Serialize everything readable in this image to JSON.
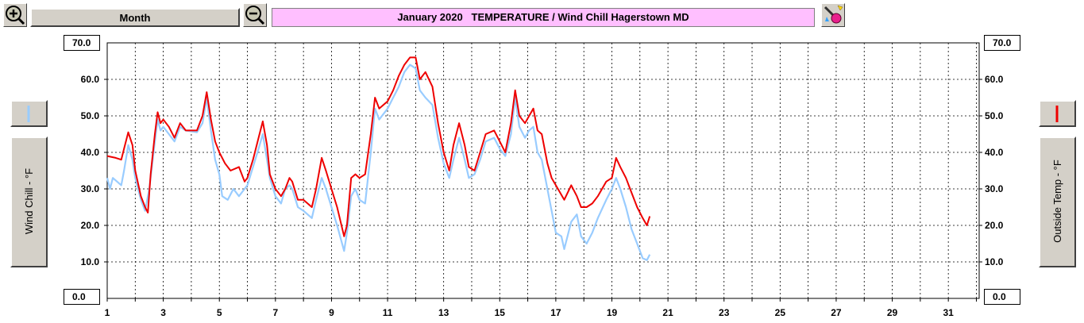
{
  "toolbar": {
    "period_label": "Month",
    "title": "January 2020   TEMPERATURE / Wind Chill Hagerstown MD"
  },
  "icons": {
    "zoom_in": "zoom-in-icon",
    "zoom_out": "zoom-out-icon",
    "tools": "wand-icon",
    "left_legend": "light-blue-line-icon",
    "right_legend": "red-line-icon"
  },
  "colors": {
    "wind_chill": "#99ccff",
    "outside_temp": "#ee0000",
    "title_bg": "#ffbfff"
  },
  "left_axis": {
    "label": "Wind Chill - °F",
    "top_value": "70.0",
    "bottom_value": "0.0"
  },
  "right_axis": {
    "label": "Outside Temp - °F",
    "top_value": "70.0",
    "bottom_value": "0.0"
  },
  "chart_data": {
    "type": "line",
    "xlim": [
      1,
      32.1
    ],
    "ylim": [
      0,
      70
    ],
    "grid": true,
    "x_ticks": [
      "1",
      "3",
      "5",
      "7",
      "9",
      "11",
      "13",
      "15",
      "17",
      "19",
      "21",
      "23",
      "25",
      "27",
      "29",
      "31"
    ],
    "y_ticks": [
      "10.0",
      "20.0",
      "30.0",
      "40.0",
      "50.0",
      "60.0"
    ],
    "series": [
      {
        "key": "temp",
        "color": "#ee0000",
        "points": [
          [
            1.0,
            39
          ],
          [
            1.3,
            38.5
          ],
          [
            1.5,
            38
          ],
          [
            1.6,
            41
          ],
          [
            1.75,
            45.5
          ],
          [
            1.9,
            42
          ],
          [
            2.0,
            35
          ],
          [
            2.2,
            28
          ],
          [
            2.35,
            25
          ],
          [
            2.45,
            23.5
          ],
          [
            2.55,
            34
          ],
          [
            2.7,
            45
          ],
          [
            2.8,
            51
          ],
          [
            2.9,
            48
          ],
          [
            3.0,
            49
          ],
          [
            3.2,
            47
          ],
          [
            3.4,
            44
          ],
          [
            3.6,
            48
          ],
          [
            3.8,
            46
          ],
          [
            4.2,
            46
          ],
          [
            4.4,
            50
          ],
          [
            4.55,
            56.5
          ],
          [
            4.7,
            49
          ],
          [
            4.85,
            43
          ],
          [
            5.0,
            40
          ],
          [
            5.2,
            37
          ],
          [
            5.4,
            35
          ],
          [
            5.7,
            36
          ],
          [
            5.9,
            32
          ],
          [
            6.0,
            33
          ],
          [
            6.2,
            38
          ],
          [
            6.4,
            44
          ],
          [
            6.55,
            48.5
          ],
          [
            6.7,
            42
          ],
          [
            6.8,
            34
          ],
          [
            7.0,
            30
          ],
          [
            7.2,
            28
          ],
          [
            7.35,
            30
          ],
          [
            7.5,
            33
          ],
          [
            7.6,
            32
          ],
          [
            7.8,
            27
          ],
          [
            8.0,
            27
          ],
          [
            8.3,
            25
          ],
          [
            8.45,
            30
          ],
          [
            8.65,
            38.5
          ],
          [
            8.8,
            35
          ],
          [
            9.0,
            30
          ],
          [
            9.2,
            25
          ],
          [
            9.45,
            17
          ],
          [
            9.55,
            20
          ],
          [
            9.7,
            33
          ],
          [
            9.85,
            34
          ],
          [
            10.0,
            33
          ],
          [
            10.2,
            34
          ],
          [
            10.4,
            45
          ],
          [
            10.55,
            55
          ],
          [
            10.7,
            52
          ],
          [
            11.0,
            54
          ],
          [
            11.2,
            57
          ],
          [
            11.4,
            61
          ],
          [
            11.6,
            64
          ],
          [
            11.8,
            66
          ],
          [
            12.0,
            66
          ],
          [
            12.15,
            60
          ],
          [
            12.35,
            62
          ],
          [
            12.6,
            58
          ],
          [
            12.8,
            48
          ],
          [
            13.0,
            40
          ],
          [
            13.2,
            35
          ],
          [
            13.35,
            42
          ],
          [
            13.55,
            48
          ],
          [
            13.75,
            42
          ],
          [
            13.9,
            36
          ],
          [
            14.1,
            35
          ],
          [
            14.3,
            40
          ],
          [
            14.5,
            45
          ],
          [
            14.8,
            46
          ],
          [
            15.0,
            43
          ],
          [
            15.2,
            40
          ],
          [
            15.4,
            48
          ],
          [
            15.55,
            57
          ],
          [
            15.7,
            50
          ],
          [
            15.9,
            48
          ],
          [
            16.05,
            50
          ],
          [
            16.2,
            52
          ],
          [
            16.35,
            46
          ],
          [
            16.5,
            45
          ],
          [
            16.7,
            37
          ],
          [
            16.85,
            33
          ],
          [
            17.0,
            31
          ],
          [
            17.3,
            27
          ],
          [
            17.55,
            31
          ],
          [
            17.75,
            28
          ],
          [
            17.9,
            25
          ],
          [
            18.1,
            25
          ],
          [
            18.3,
            26
          ],
          [
            18.5,
            28
          ],
          [
            18.8,
            32
          ],
          [
            19.0,
            33
          ],
          [
            19.15,
            38.5
          ],
          [
            19.3,
            36
          ],
          [
            19.5,
            33
          ],
          [
            19.7,
            29
          ],
          [
            19.9,
            25
          ],
          [
            20.1,
            22
          ],
          [
            20.25,
            20
          ],
          [
            20.35,
            22.5
          ]
        ]
      },
      {
        "key": "chill",
        "color": "#99ccff",
        "points": [
          [
            1.0,
            33
          ],
          [
            1.1,
            30
          ],
          [
            1.2,
            33
          ],
          [
            1.35,
            32
          ],
          [
            1.5,
            31
          ],
          [
            1.6,
            35
          ],
          [
            1.75,
            42
          ],
          [
            1.9,
            38
          ],
          [
            2.0,
            33
          ],
          [
            2.2,
            27
          ],
          [
            2.35,
            24
          ],
          [
            2.5,
            30
          ],
          [
            2.7,
            43
          ],
          [
            2.8,
            49
          ],
          [
            2.9,
            46
          ],
          [
            3.0,
            47
          ],
          [
            3.2,
            45
          ],
          [
            3.4,
            43
          ],
          [
            3.6,
            47
          ],
          [
            3.8,
            46
          ],
          [
            4.2,
            45.5
          ],
          [
            4.4,
            48
          ],
          [
            4.55,
            55
          ],
          [
            4.7,
            46
          ],
          [
            4.85,
            38
          ],
          [
            5.0,
            34
          ],
          [
            5.1,
            28
          ],
          [
            5.3,
            27
          ],
          [
            5.5,
            30
          ],
          [
            5.7,
            28
          ],
          [
            5.9,
            30
          ],
          [
            6.0,
            31
          ],
          [
            6.2,
            36
          ],
          [
            6.4,
            41
          ],
          [
            6.55,
            45
          ],
          [
            6.7,
            38
          ],
          [
            6.8,
            33
          ],
          [
            7.0,
            28
          ],
          [
            7.2,
            26
          ],
          [
            7.35,
            30
          ],
          [
            7.5,
            31
          ],
          [
            7.6,
            30
          ],
          [
            7.8,
            25
          ],
          [
            8.0,
            24
          ],
          [
            8.3,
            22
          ],
          [
            8.45,
            27
          ],
          [
            8.65,
            33
          ],
          [
            8.8,
            30
          ],
          [
            9.0,
            25
          ],
          [
            9.2,
            20
          ],
          [
            9.45,
            13
          ],
          [
            9.55,
            18
          ],
          [
            9.7,
            28
          ],
          [
            9.85,
            30
          ],
          [
            10.0,
            27
          ],
          [
            10.2,
            26
          ],
          [
            10.4,
            40
          ],
          [
            10.55,
            52
          ],
          [
            10.7,
            49
          ],
          [
            11.0,
            52
          ],
          [
            11.2,
            55
          ],
          [
            11.4,
            58
          ],
          [
            11.6,
            62
          ],
          [
            11.8,
            64
          ],
          [
            12.0,
            63
          ],
          [
            12.15,
            57
          ],
          [
            12.35,
            55
          ],
          [
            12.6,
            53
          ],
          [
            12.8,
            44
          ],
          [
            13.0,
            37
          ],
          [
            13.2,
            33
          ],
          [
            13.35,
            38
          ],
          [
            13.55,
            44
          ],
          [
            13.75,
            38
          ],
          [
            13.9,
            33
          ],
          [
            14.1,
            34
          ],
          [
            14.3,
            38
          ],
          [
            14.5,
            43
          ],
          [
            14.8,
            44
          ],
          [
            15.0,
            41
          ],
          [
            15.2,
            39
          ],
          [
            15.4,
            45
          ],
          [
            15.55,
            55
          ],
          [
            15.7,
            47
          ],
          [
            15.9,
            44
          ],
          [
            16.05,
            46
          ],
          [
            16.2,
            47
          ],
          [
            16.35,
            40
          ],
          [
            16.5,
            38
          ],
          [
            16.7,
            30
          ],
          [
            16.85,
            24
          ],
          [
            17.0,
            18
          ],
          [
            17.2,
            17
          ],
          [
            17.3,
            13.5
          ],
          [
            17.55,
            21
          ],
          [
            17.75,
            23
          ],
          [
            17.9,
            17
          ],
          [
            18.1,
            15
          ],
          [
            18.3,
            18
          ],
          [
            18.5,
            22
          ],
          [
            18.8,
            27
          ],
          [
            19.0,
            30
          ],
          [
            19.15,
            33
          ],
          [
            19.3,
            30
          ],
          [
            19.5,
            25
          ],
          [
            19.7,
            19
          ],
          [
            19.9,
            15
          ],
          [
            20.1,
            11
          ],
          [
            20.25,
            10.5
          ],
          [
            20.35,
            12
          ]
        ]
      }
    ]
  }
}
